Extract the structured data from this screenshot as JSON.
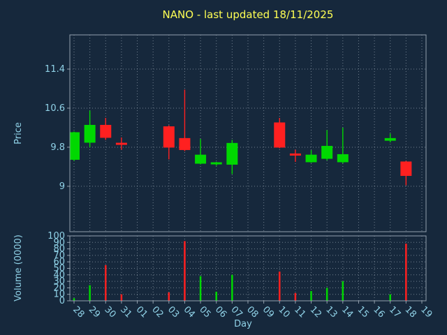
{
  "title": {
    "text": "NANO - last updated 18/11/2025"
  },
  "axes": {
    "price_label": "Price",
    "volume_label": "Volume (0000)",
    "x_label": "Day"
  },
  "colors": {
    "background": "#16283c",
    "up": "#00d800",
    "down": "#ff2020",
    "grid": "#bdc9d4",
    "tick_text": "#90d2e7",
    "title_text": "#ffff54",
    "spine": "#93a1ae"
  },
  "chart_data": {
    "type": "candlestick+volume",
    "title": "NANO - last updated 18/11/2025",
    "xlabel": "Day",
    "ylabel_top": "Price",
    "ylabel_bottom": "Volume (0000)",
    "x_categories": [
      "28",
      "29",
      "30",
      "31",
      "01",
      "02",
      "03",
      "04",
      "05",
      "06",
      "07",
      "08",
      "09",
      "10",
      "11",
      "12",
      "13",
      "14",
      "15",
      "16",
      "17",
      "18",
      "19"
    ],
    "price_ticks": [
      9,
      9.8,
      10.6,
      11.4
    ],
    "price_range": [
      8.07,
      12.1
    ],
    "volume_ticks": [
      0,
      10,
      20,
      30,
      40,
      50,
      60,
      70,
      80,
      90,
      100
    ],
    "volume_range": [
      0,
      100
    ],
    "candles": [
      {
        "day": "28",
        "open": 9.55,
        "high": 10.12,
        "low": 9.52,
        "close": 10.1,
        "volume": 4
      },
      {
        "day": "29",
        "open": 9.9,
        "high": 10.55,
        "low": 9.8,
        "close": 10.25,
        "volume": 24
      },
      {
        "day": "30",
        "open": 10.25,
        "high": 10.4,
        "low": 9.95,
        "close": 10.0,
        "volume": 55
      },
      {
        "day": "31",
        "open": 9.87,
        "high": 10.0,
        "low": 9.75,
        "close": 9.85,
        "volume": 10
      },
      {
        "day": "03",
        "open": 10.22,
        "high": 10.25,
        "low": 9.55,
        "close": 9.8,
        "volume": 13
      },
      {
        "day": "04",
        "open": 9.98,
        "high": 10.98,
        "low": 9.72,
        "close": 9.75,
        "volume": 92
      },
      {
        "day": "05",
        "open": 9.47,
        "high": 9.97,
        "low": 9.45,
        "close": 9.64,
        "volume": 38
      },
      {
        "day": "06",
        "open": 9.45,
        "high": 9.5,
        "low": 9.42,
        "close": 9.47,
        "volume": 14
      },
      {
        "day": "07",
        "open": 9.45,
        "high": 9.95,
        "low": 9.25,
        "close": 9.88,
        "volume": 40
      },
      {
        "day": "10",
        "open": 10.3,
        "high": 10.4,
        "low": 9.78,
        "close": 9.8,
        "volume": 45
      },
      {
        "day": "11",
        "open": 9.65,
        "high": 9.75,
        "low": 9.5,
        "close": 9.63,
        "volume": 12
      },
      {
        "day": "12",
        "open": 9.5,
        "high": 9.74,
        "low": 9.48,
        "close": 9.64,
        "volume": 15
      },
      {
        "day": "13",
        "open": 9.57,
        "high": 10.15,
        "low": 9.53,
        "close": 9.82,
        "volume": 20
      },
      {
        "day": "14",
        "open": 9.5,
        "high": 10.2,
        "low": 9.47,
        "close": 9.65,
        "volume": 30
      },
      {
        "day": "17",
        "open": 9.94,
        "high": 10.08,
        "low": 9.9,
        "close": 9.98,
        "volume": 10
      },
      {
        "day": "18",
        "open": 9.5,
        "high": 9.52,
        "low": 9.02,
        "close": 9.22,
        "volume": 88
      }
    ]
  }
}
